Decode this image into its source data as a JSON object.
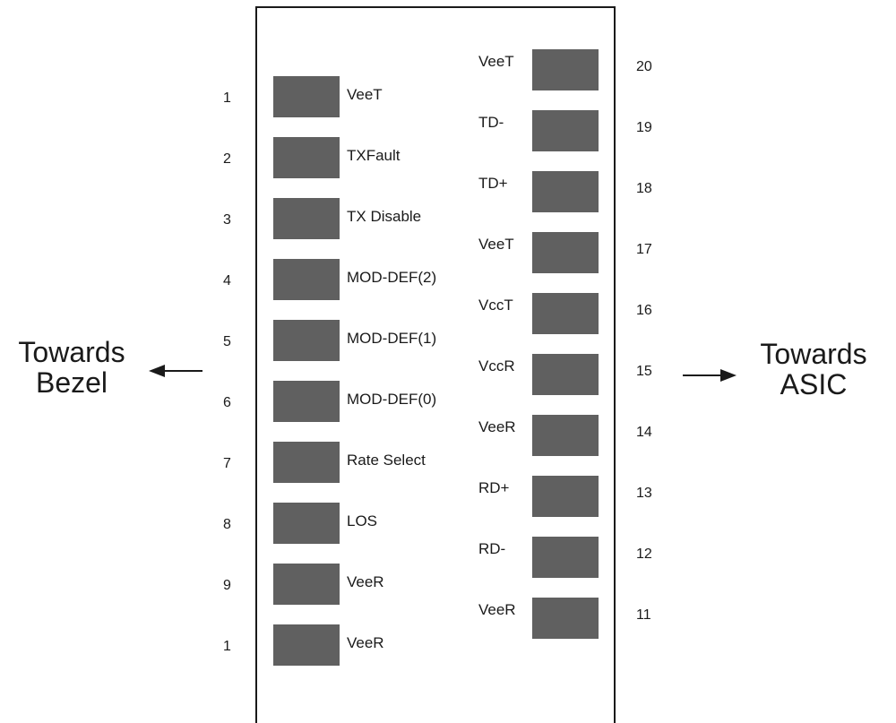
{
  "left_label": {
    "line1": "Towards",
    "line2": "Bezel"
  },
  "right_label": {
    "line1": "Towards",
    "line2": "ASIC"
  },
  "left_pins": [
    {
      "number": "1",
      "name": "VeeT"
    },
    {
      "number": "2",
      "name": "TXFault"
    },
    {
      "number": "3",
      "name": "TX Disable"
    },
    {
      "number": "4",
      "name": "MOD-DEF(2)"
    },
    {
      "number": "5",
      "name": "MOD-DEF(1)"
    },
    {
      "number": "6",
      "name": "MOD-DEF(0)"
    },
    {
      "number": "7",
      "name": "Rate Select"
    },
    {
      "number": "8",
      "name": "LOS"
    },
    {
      "number": "9",
      "name": "VeeR"
    },
    {
      "number": "1",
      "name": "VeeR"
    }
  ],
  "right_pins": [
    {
      "number": "20",
      "name": "VeeT"
    },
    {
      "number": "19",
      "name": "TD-"
    },
    {
      "number": "18",
      "name": "TD+"
    },
    {
      "number": "17",
      "name": "VeeT"
    },
    {
      "number": "16",
      "name": "VccT"
    },
    {
      "number": "15",
      "name": "VccR"
    },
    {
      "number": "14",
      "name": "VeeR"
    },
    {
      "number": "13",
      "name": "RD+"
    },
    {
      "number": "12",
      "name": "RD-"
    },
    {
      "number": "11",
      "name": "VeeR"
    }
  ],
  "colors": {
    "pad": "#606060",
    "line": "#1a1a1a",
    "background": "#ffffff"
  }
}
